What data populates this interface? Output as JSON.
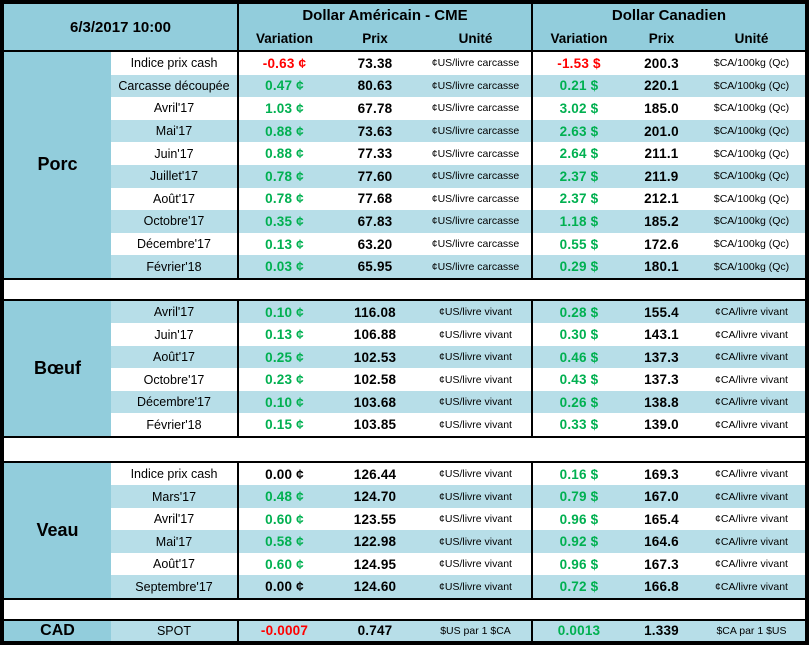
{
  "report_datetime": "6/3/2017 10:00",
  "colors": {
    "header_bg": "#92CDDC",
    "stripe_bg": "#B7DEE8",
    "positive": "#00B050",
    "negative": "#FF0000",
    "neutral": "#000000"
  },
  "chart_data": {
    "type": "table",
    "title": "6/3/2017 10:00",
    "column_groups": {
      "us": "Dollar Américain - CME",
      "ca": "Dollar Canadien"
    },
    "columns": {
      "variation": "Variation",
      "prix": "Prix",
      "unite": "Unité"
    },
    "sections": [
      {
        "key": "porc",
        "name": "Porc",
        "stripe_first": false,
        "rows": [
          {
            "label": "Indice prix cash",
            "us_var": "-0.63 ¢",
            "us_prix": "73.38",
            "us_unit": "¢US/livre carcasse",
            "ca_var": "-1.53 $",
            "ca_prix": "200.3",
            "ca_unit": "$CA/100kg (Qc)"
          },
          {
            "label": "Carcasse découpée",
            "us_var": "0.47 ¢",
            "us_prix": "80.63",
            "us_unit": "¢US/livre carcasse",
            "ca_var": "0.21 $",
            "ca_prix": "220.1",
            "ca_unit": "$CA/100kg (Qc)"
          },
          {
            "label": "Avril'17",
            "us_var": "1.03 ¢",
            "us_prix": "67.78",
            "us_unit": "¢US/livre carcasse",
            "ca_var": "3.02 $",
            "ca_prix": "185.0",
            "ca_unit": "$CA/100kg (Qc)"
          },
          {
            "label": "Mai'17",
            "us_var": "0.88 ¢",
            "us_prix": "73.63",
            "us_unit": "¢US/livre carcasse",
            "ca_var": "2.63 $",
            "ca_prix": "201.0",
            "ca_unit": "$CA/100kg (Qc)"
          },
          {
            "label": "Juin'17",
            "us_var": "0.88 ¢",
            "us_prix": "77.33",
            "us_unit": "¢US/livre carcasse",
            "ca_var": "2.64 $",
            "ca_prix": "211.1",
            "ca_unit": "$CA/100kg (Qc)"
          },
          {
            "label": "Juillet'17",
            "us_var": "0.78 ¢",
            "us_prix": "77.60",
            "us_unit": "¢US/livre carcasse",
            "ca_var": "2.37 $",
            "ca_prix": "211.9",
            "ca_unit": "$CA/100kg (Qc)"
          },
          {
            "label": "Août'17",
            "us_var": "0.78 ¢",
            "us_prix": "77.68",
            "us_unit": "¢US/livre carcasse",
            "ca_var": "2.37 $",
            "ca_prix": "212.1",
            "ca_unit": "$CA/100kg (Qc)"
          },
          {
            "label": "Octobre'17",
            "us_var": "0.35 ¢",
            "us_prix": "67.83",
            "us_unit": "¢US/livre carcasse",
            "ca_var": "1.18 $",
            "ca_prix": "185.2",
            "ca_unit": "$CA/100kg (Qc)"
          },
          {
            "label": "Décembre'17",
            "us_var": "0.13 ¢",
            "us_prix": "63.20",
            "us_unit": "¢US/livre carcasse",
            "ca_var": "0.55 $",
            "ca_prix": "172.6",
            "ca_unit": "$CA/100kg (Qc)"
          },
          {
            "label": "Février'18",
            "us_var": "0.03 ¢",
            "us_prix": "65.95",
            "us_unit": "¢US/livre carcasse",
            "ca_var": "0.29 $",
            "ca_prix": "180.1",
            "ca_unit": "$CA/100kg (Qc)"
          }
        ]
      },
      {
        "key": "boeuf",
        "name": "Bœuf",
        "stripe_first": true,
        "rows": [
          {
            "label": "Avril'17",
            "us_var": "0.10 ¢",
            "us_prix": "116.08",
            "us_unit": "¢US/livre vivant",
            "ca_var": "0.28 $",
            "ca_prix": "155.4",
            "ca_unit": "¢CA/livre vivant"
          },
          {
            "label": "Juin'17",
            "us_var": "0.13 ¢",
            "us_prix": "106.88",
            "us_unit": "¢US/livre vivant",
            "ca_var": "0.30 $",
            "ca_prix": "143.1",
            "ca_unit": "¢CA/livre vivant"
          },
          {
            "label": "Août'17",
            "us_var": "0.25 ¢",
            "us_prix": "102.53",
            "us_unit": "¢US/livre vivant",
            "ca_var": "0.46 $",
            "ca_prix": "137.3",
            "ca_unit": "¢CA/livre vivant"
          },
          {
            "label": "Octobre'17",
            "us_var": "0.23 ¢",
            "us_prix": "102.58",
            "us_unit": "¢US/livre vivant",
            "ca_var": "0.43 $",
            "ca_prix": "137.3",
            "ca_unit": "¢CA/livre vivant"
          },
          {
            "label": "Décembre'17",
            "us_var": "0.10 ¢",
            "us_prix": "103.68",
            "us_unit": "¢US/livre vivant",
            "ca_var": "0.26 $",
            "ca_prix": "138.8",
            "ca_unit": "¢CA/livre vivant"
          },
          {
            "label": "Février'18",
            "us_var": "0.15 ¢",
            "us_prix": "103.85",
            "us_unit": "¢US/livre vivant",
            "ca_var": "0.33 $",
            "ca_prix": "139.0",
            "ca_unit": "¢CA/livre vivant"
          }
        ]
      },
      {
        "key": "veau",
        "name": "Veau",
        "stripe_first": false,
        "rows": [
          {
            "label": "Indice prix cash",
            "us_var": "0.00 ¢",
            "us_prix": "126.44",
            "us_unit": "¢US/livre vivant",
            "ca_var": "0.16 $",
            "ca_prix": "169.3",
            "ca_unit": "¢CA/livre vivant"
          },
          {
            "label": "Mars'17",
            "us_var": "0.48 ¢",
            "us_prix": "124.70",
            "us_unit": "¢US/livre vivant",
            "ca_var": "0.79 $",
            "ca_prix": "167.0",
            "ca_unit": "¢CA/livre vivant"
          },
          {
            "label": "Avril'17",
            "us_var": "0.60 ¢",
            "us_prix": "123.55",
            "us_unit": "¢US/livre vivant",
            "ca_var": "0.96 $",
            "ca_prix": "165.4",
            "ca_unit": "¢CA/livre vivant"
          },
          {
            "label": "Mai'17",
            "us_var": "0.58 ¢",
            "us_prix": "122.98",
            "us_unit": "¢US/livre vivant",
            "ca_var": "0.92 $",
            "ca_prix": "164.6",
            "ca_unit": "¢CA/livre vivant"
          },
          {
            "label": "Août'17",
            "us_var": "0.60 ¢",
            "us_prix": "124.95",
            "us_unit": "¢US/livre vivant",
            "ca_var": "0.96 $",
            "ca_prix": "167.3",
            "ca_unit": "¢CA/livre vivant"
          },
          {
            "label": "Septembre'17",
            "us_var": "0.00 ¢",
            "us_prix": "124.60",
            "us_unit": "¢US/livre vivant",
            "ca_var": "0.72 $",
            "ca_prix": "166.8",
            "ca_unit": "¢CA/livre vivant"
          }
        ]
      },
      {
        "key": "cad",
        "name": "CAD",
        "stripe_first": true,
        "rows": [
          {
            "label": "SPOT",
            "us_var": "-0.0007",
            "us_prix": "0.747",
            "us_unit": "$US par 1 $CA",
            "ca_var": "0.0013",
            "ca_prix": "1.339",
            "ca_unit": "$CA par 1 $US"
          }
        ]
      }
    ]
  }
}
